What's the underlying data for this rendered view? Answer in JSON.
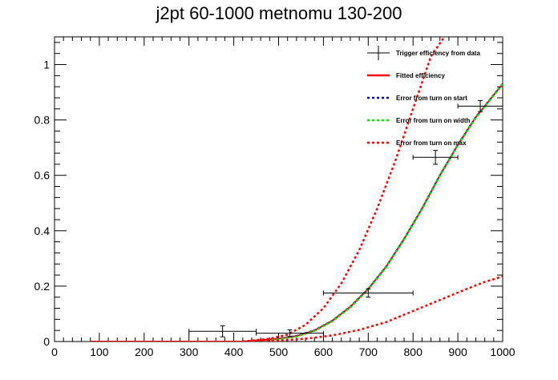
{
  "chart_data": {
    "type": "line",
    "title": "j2pt 60-1000 metnomu 130-200",
    "xlabel": "",
    "ylabel": "",
    "xlim": [
      0,
      1000
    ],
    "ylim": [
      0,
      1.1
    ],
    "x_ticks": [
      "0",
      "100",
      "200",
      "300",
      "400",
      "500",
      "600",
      "700",
      "800",
      "900",
      "1000"
    ],
    "y_ticks": [
      "0",
      "0.2",
      "0.4",
      "0.6",
      "0.8",
      "1"
    ],
    "grid": false,
    "legend_position": "top-right",
    "legend": [
      {
        "label": "Trigger efficiency from data",
        "style": "marker",
        "color": "#000000"
      },
      {
        "label": "Fitted efficiency",
        "style": "solid",
        "color": "#ff0000"
      },
      {
        "label": "Error from turn on start",
        "style": "dotted",
        "color": "#0000cc"
      },
      {
        "label": "Error from turn on width",
        "style": "dotted",
        "color": "#00ee00"
      },
      {
        "label": "Error from turn on max",
        "style": "dotted",
        "color": "#ff0000"
      }
    ],
    "data_points": [
      {
        "x": 375,
        "xerr": 75,
        "y": 0.037,
        "yerr": 0.02
      },
      {
        "x": 525,
        "xerr": 75,
        "y": 0.03,
        "yerr": 0.012
      },
      {
        "x": 700,
        "xerr": 100,
        "y": 0.175,
        "yerr": 0.015
      },
      {
        "x": 850,
        "xerr": 50,
        "y": 0.665,
        "yerr": 0.025
      },
      {
        "x": 950,
        "xerr": 50,
        "y": 0.85,
        "yerr": 0.02
      }
    ],
    "series": [
      {
        "label": "Fitted efficiency",
        "color": "#ff0000",
        "dash": "solid",
        "x": [
          80,
          420,
          500,
          540,
          580,
          620,
          660,
          700,
          740,
          780,
          820,
          860,
          900,
          940,
          980,
          1000
        ],
        "y": [
          0.0,
          0.0,
          0.01,
          0.02,
          0.04,
          0.075,
          0.125,
          0.19,
          0.27,
          0.37,
          0.48,
          0.6,
          0.71,
          0.81,
          0.89,
          0.93
        ]
      },
      {
        "label": "Error from turn on start",
        "color": "#0000cc",
        "dash": "dotted",
        "x": [
          420,
          500,
          540,
          580,
          620,
          660,
          700,
          740,
          780,
          820,
          860,
          900,
          940,
          980,
          1000
        ],
        "y": [
          0.0,
          0.01,
          0.02,
          0.04,
          0.075,
          0.125,
          0.19,
          0.27,
          0.37,
          0.48,
          0.6,
          0.71,
          0.81,
          0.89,
          0.93
        ]
      },
      {
        "label": "Error from turn on width",
        "color": "#00ee00",
        "dash": "dotted",
        "x": [
          420,
          500,
          540,
          580,
          620,
          660,
          700,
          740,
          780,
          820,
          860,
          900,
          940,
          980,
          1000
        ],
        "y": [
          0.0,
          0.008,
          0.018,
          0.038,
          0.073,
          0.123,
          0.188,
          0.268,
          0.368,
          0.478,
          0.598,
          0.708,
          0.808,
          0.888,
          0.928
        ]
      },
      {
        "label": "Error from turn on max (upper)",
        "color": "#ff0000",
        "dash": "dotted",
        "x": [
          420,
          480,
          520,
          560,
          600,
          640,
          680,
          720,
          760,
          800,
          840,
          870
        ],
        "y": [
          0.0,
          0.01,
          0.025,
          0.06,
          0.12,
          0.21,
          0.33,
          0.48,
          0.65,
          0.84,
          1.03,
          1.1
        ]
      },
      {
        "label": "Error from turn on max (lower)",
        "color": "#ff0000",
        "dash": "dotted",
        "x": [
          420,
          500,
          560,
          620,
          680,
          740,
          800,
          860,
          920,
          960,
          1000
        ],
        "y": [
          0.0,
          0.003,
          0.01,
          0.022,
          0.042,
          0.07,
          0.11,
          0.15,
          0.19,
          0.215,
          0.235
        ]
      }
    ]
  }
}
